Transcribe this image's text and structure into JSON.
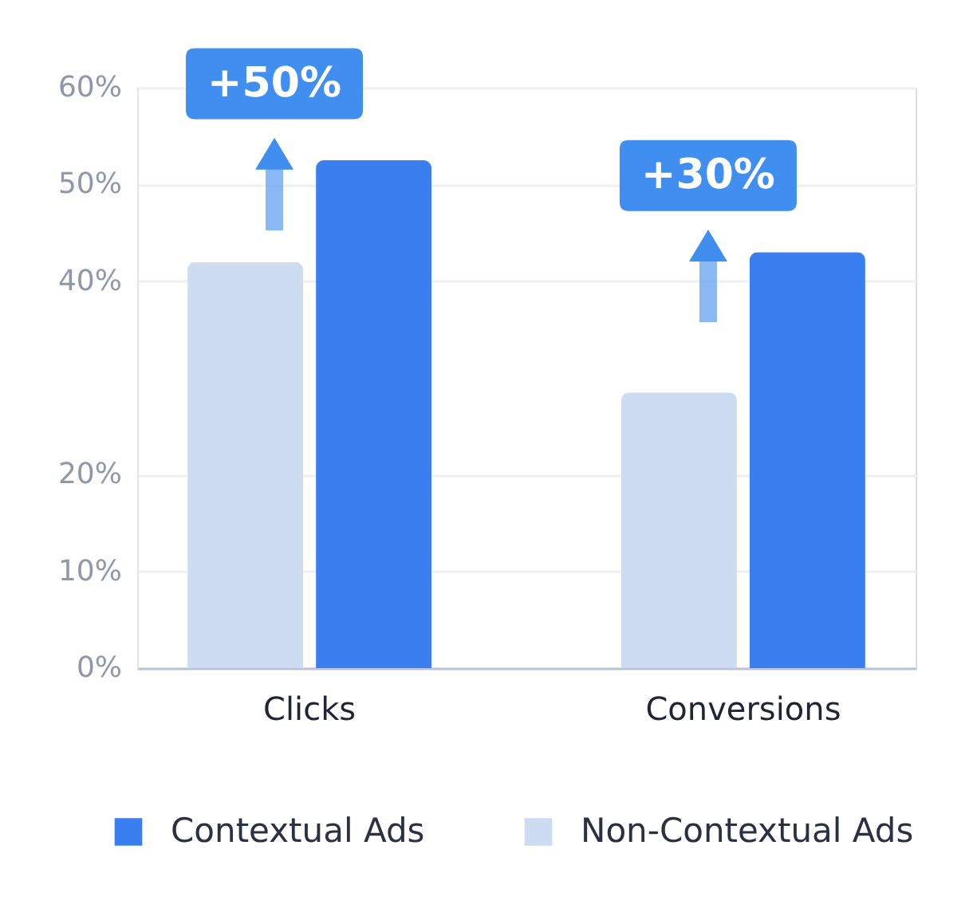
{
  "chart_data": {
    "type": "bar",
    "categories": [
      "Clicks",
      "Conversions"
    ],
    "series": [
      {
        "name": "Non-Contextual Ads",
        "color": "#cddcf0",
        "values": [
          42,
          28.5
        ]
      },
      {
        "name": "Contextual Ads",
        "color": "#3a7ff0",
        "values": [
          52.5,
          43
        ]
      }
    ],
    "ylim": [
      0,
      60
    ],
    "yticks": [
      {
        "value": 0,
        "label": "0%"
      },
      {
        "value": 10,
        "label": "10%"
      },
      {
        "value": 20,
        "label": "20%"
      },
      {
        "value": 40,
        "label": "40%"
      },
      {
        "value": 50,
        "label": "50%"
      },
      {
        "value": 60,
        "label": "60%"
      }
    ],
    "grid": "y",
    "legend": "bottom",
    "annotations": [
      "+50%",
      "+30%"
    ]
  }
}
